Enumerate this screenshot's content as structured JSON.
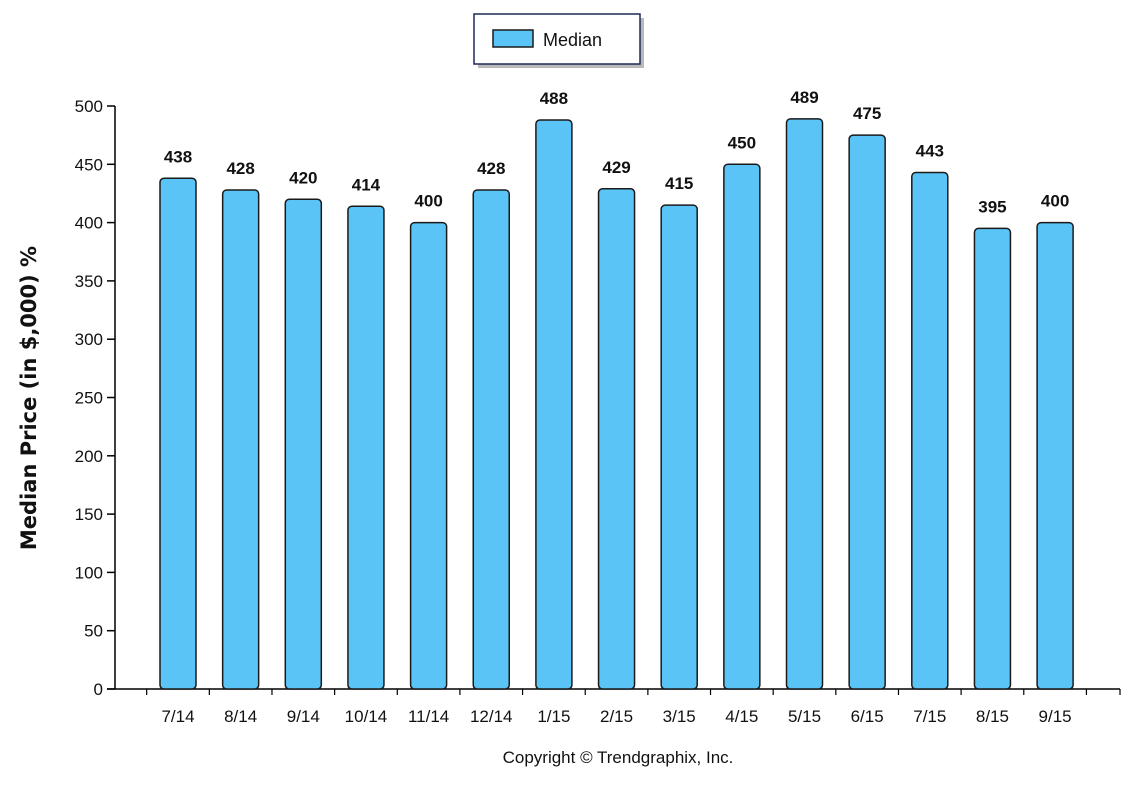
{
  "chart_data": {
    "type": "bar",
    "categories": [
      "7/14",
      "8/14",
      "9/14",
      "10/14",
      "11/14",
      "12/14",
      "1/15",
      "2/15",
      "3/15",
      "4/15",
      "5/15",
      "6/15",
      "7/15",
      "8/15",
      "9/15"
    ],
    "series": [
      {
        "name": "Median",
        "values": [
          438,
          428,
          420,
          414,
          400,
          428,
          488,
          429,
          415,
          450,
          489,
          475,
          443,
          395,
          400
        ]
      }
    ],
    "ylabel": "Median Price (in $,000) %",
    "xlabel": "",
    "ylim": [
      0,
      500
    ],
    "yticks": [
      0,
      50,
      100,
      150,
      200,
      250,
      300,
      350,
      400,
      450,
      500
    ],
    "legend_position": "top-center",
    "grid": false,
    "bar_color": "#5bc4f7",
    "bar_edge_color": "#1a1a1a"
  },
  "footer": {
    "copyright": "Copyright © Trendgraphix, Inc."
  }
}
